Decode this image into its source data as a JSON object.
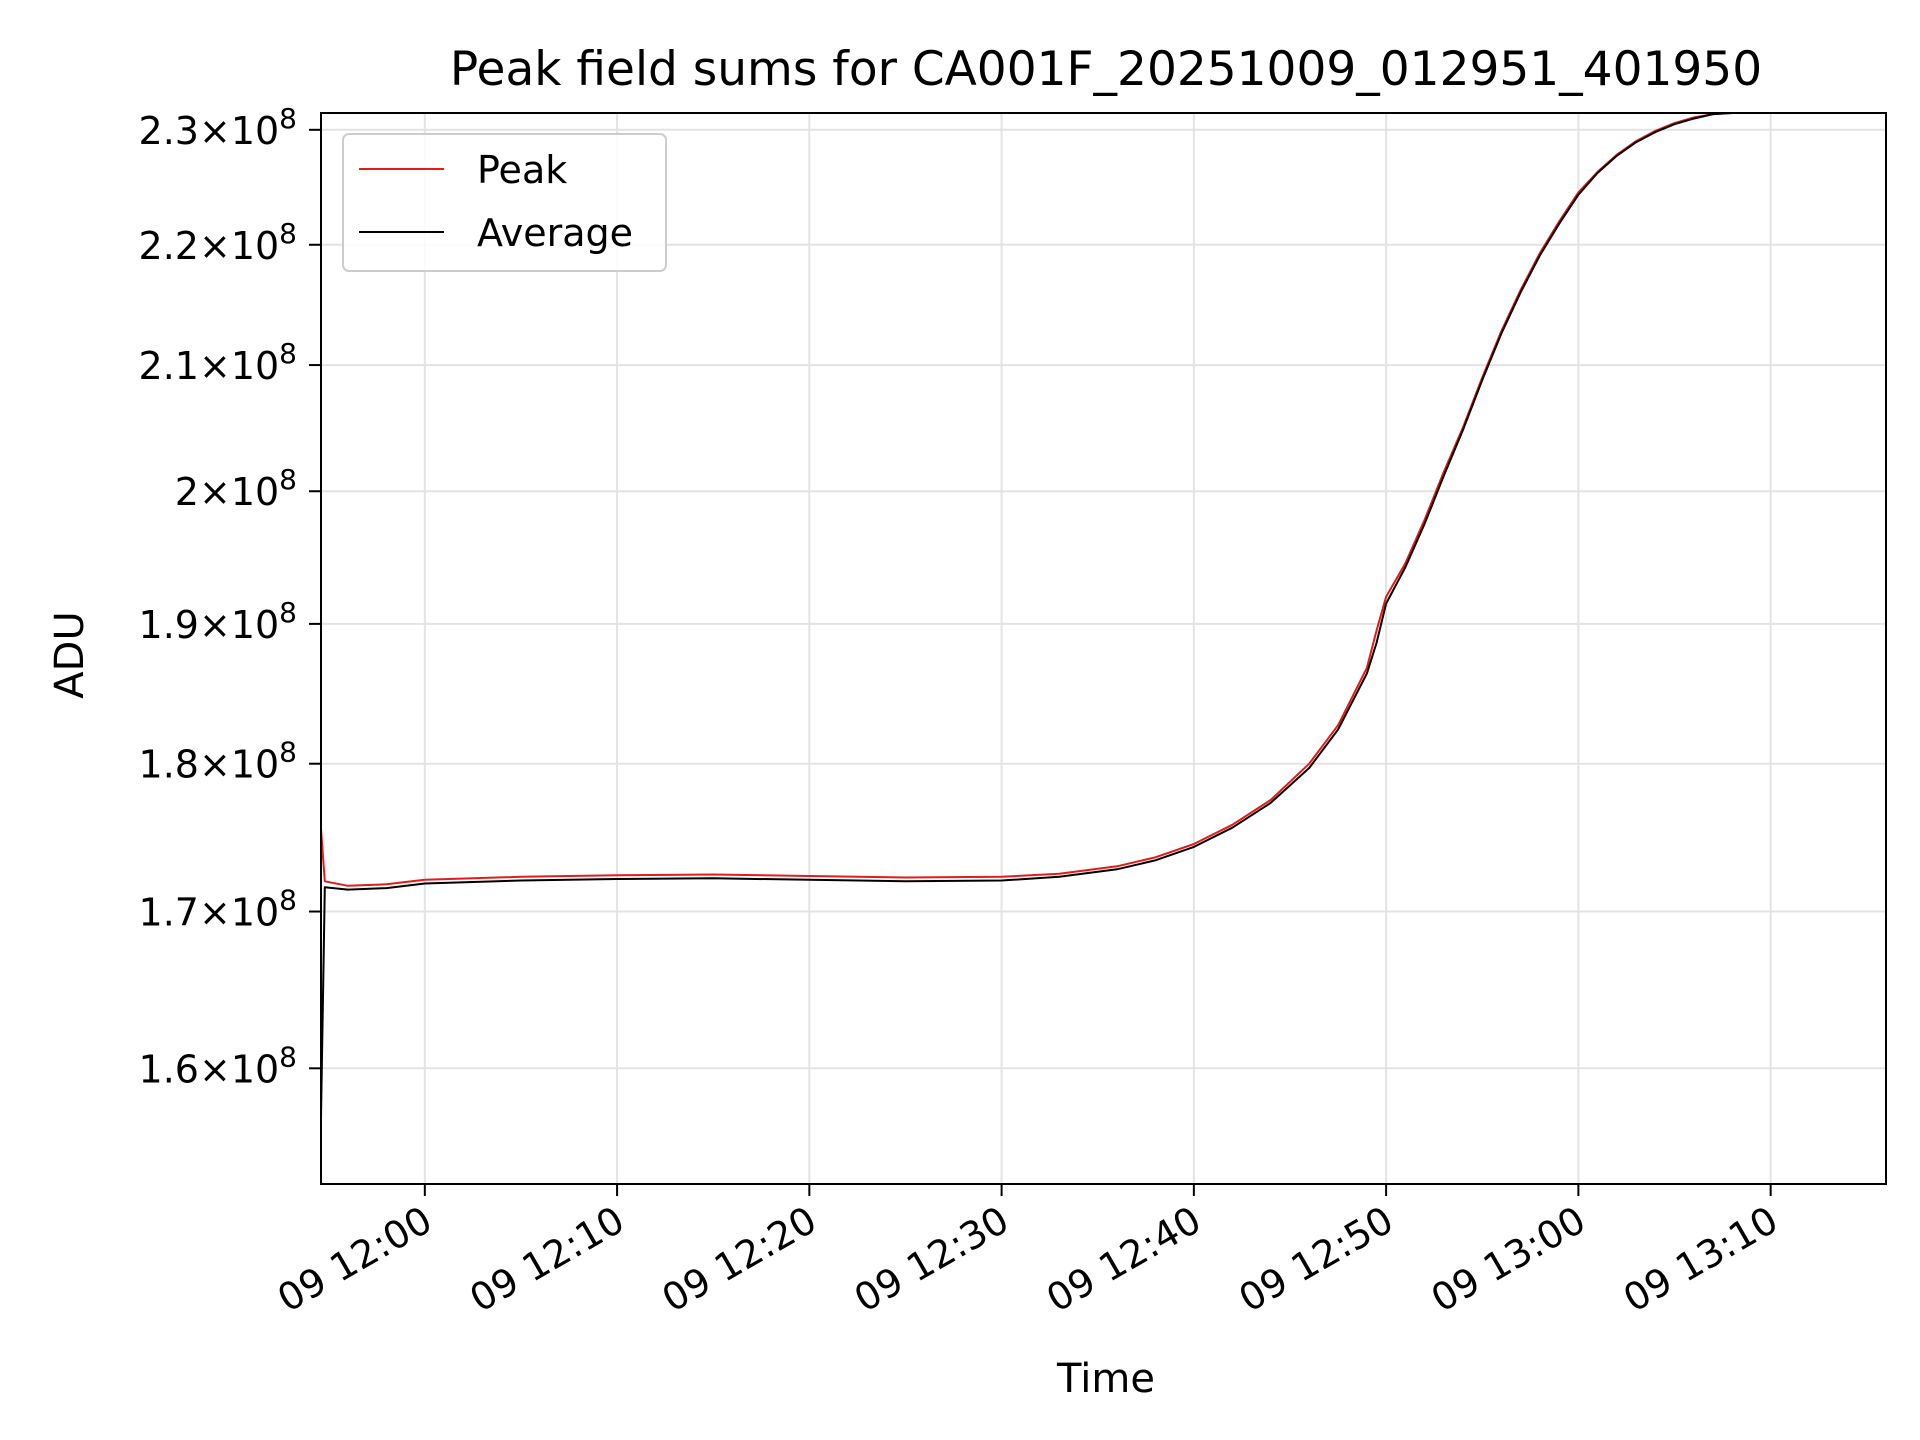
{
  "chart_data": {
    "type": "line",
    "title": "Peak field sums for CA001F_20251009_012951_401950",
    "xlabel": "Time",
    "ylabel": "ADU",
    "x_format": "DD HH:MM",
    "xlim": [
      "2025-10-09 11:54:36",
      "2025-10-09 13:16:00"
    ],
    "ylim": [
      153000000,
      231500000
    ],
    "yscale": "log",
    "grid": true,
    "legend_position": "top-left",
    "x_ticks": [
      {
        "value": "2025-10-09 12:00",
        "label": "09 12:00"
      },
      {
        "value": "2025-10-09 12:10",
        "label": "09 12:10"
      },
      {
        "value": "2025-10-09 12:20",
        "label": "09 12:20"
      },
      {
        "value": "2025-10-09 12:30",
        "label": "09 12:30"
      },
      {
        "value": "2025-10-09 12:40",
        "label": "09 12:40"
      },
      {
        "value": "2025-10-09 12:50",
        "label": "09 12:50"
      },
      {
        "value": "2025-10-09 13:00",
        "label": "09 13:00"
      },
      {
        "value": "2025-10-09 13:10",
        "label": "09 13:10"
      }
    ],
    "y_ticks": [
      {
        "value": 160000000,
        "mantissa": "1.6",
        "base": "10",
        "exp": "8"
      },
      {
        "value": 170000000,
        "mantissa": "1.7",
        "base": "10",
        "exp": "8"
      },
      {
        "value": 180000000,
        "mantissa": "1.8",
        "base": "10",
        "exp": "8"
      },
      {
        "value": 190000000,
        "mantissa": "1.9",
        "base": "10",
        "exp": "8"
      },
      {
        "value": 200000000,
        "mantissa": "2",
        "base": "10",
        "exp": "8"
      },
      {
        "value": 210000000,
        "mantissa": "2.1",
        "base": "10",
        "exp": "8"
      },
      {
        "value": 220000000,
        "mantissa": "2.2",
        "base": "10",
        "exp": "8"
      },
      {
        "value": 230000000,
        "mantissa": "2.3",
        "base": "10",
        "exp": "8"
      }
    ],
    "series": [
      {
        "name": "Peak",
        "color": "#e41a1c",
        "points": [
          [
            "2025-10-09 11:54:36",
            175500000
          ],
          [
            "2025-10-09 11:54:48",
            172000000
          ],
          [
            "2025-10-09 11:56:00",
            171700000
          ],
          [
            "2025-10-09 11:58:00",
            171800000
          ],
          [
            "2025-10-09 12:00:00",
            172100000
          ],
          [
            "2025-10-09 12:05:00",
            172300000
          ],
          [
            "2025-10-09 12:10:00",
            172400000
          ],
          [
            "2025-10-09 12:15:00",
            172450000
          ],
          [
            "2025-10-09 12:20:00",
            172350000
          ],
          [
            "2025-10-09 12:25:00",
            172250000
          ],
          [
            "2025-10-09 12:30:00",
            172300000
          ],
          [
            "2025-10-09 12:33:00",
            172500000
          ],
          [
            "2025-10-09 12:36:00",
            173000000
          ],
          [
            "2025-10-09 12:38:00",
            173600000
          ],
          [
            "2025-10-09 12:40:00",
            174500000
          ],
          [
            "2025-10-09 12:42:00",
            175800000
          ],
          [
            "2025-10-09 12:44:00",
            177500000
          ],
          [
            "2025-10-09 12:46:00",
            180000000
          ],
          [
            "2025-10-09 12:47:30",
            182700000
          ],
          [
            "2025-10-09 12:49:00",
            186800000
          ],
          [
            "2025-10-09 12:49:30",
            189500000
          ],
          [
            "2025-10-09 12:50:00",
            192000000
          ],
          [
            "2025-10-09 12:51:00",
            194500000
          ],
          [
            "2025-10-09 12:52:00",
            197800000
          ],
          [
            "2025-10-09 12:53:00",
            201500000
          ],
          [
            "2025-10-09 12:54:00",
            205000000
          ],
          [
            "2025-10-09 12:55:00",
            209000000
          ],
          [
            "2025-10-09 12:56:00",
            212800000
          ],
          [
            "2025-10-09 12:57:00",
            216200000
          ],
          [
            "2025-10-09 12:58:00",
            219300000
          ],
          [
            "2025-10-09 12:59:00",
            222000000
          ],
          [
            "2025-10-09 13:00:00",
            224500000
          ],
          [
            "2025-10-09 13:01:00",
            226300000
          ],
          [
            "2025-10-09 13:02:00",
            227800000
          ],
          [
            "2025-10-09 13:03:00",
            229000000
          ],
          [
            "2025-10-09 13:04:00",
            229900000
          ],
          [
            "2025-10-09 13:05:00",
            230600000
          ],
          [
            "2025-10-09 13:06:00",
            231100000
          ],
          [
            "2025-10-09 13:07:00",
            231400000
          ],
          [
            "2025-10-09 13:08:00",
            231500000
          ]
        ]
      },
      {
        "name": "Average",
        "color": "#000000",
        "points": [
          [
            "2025-10-09 11:54:36",
            157000000
          ],
          [
            "2025-10-09 11:54:48",
            171600000
          ],
          [
            "2025-10-09 11:56:00",
            171450000
          ],
          [
            "2025-10-09 11:58:00",
            171550000
          ],
          [
            "2025-10-09 12:00:00",
            171850000
          ],
          [
            "2025-10-09 12:05:00",
            172050000
          ],
          [
            "2025-10-09 12:10:00",
            172150000
          ],
          [
            "2025-10-09 12:15:00",
            172200000
          ],
          [
            "2025-10-09 12:20:00",
            172100000
          ],
          [
            "2025-10-09 12:25:00",
            172000000
          ],
          [
            "2025-10-09 12:30:00",
            172050000
          ],
          [
            "2025-10-09 12:33:00",
            172300000
          ],
          [
            "2025-10-09 12:36:00",
            172800000
          ],
          [
            "2025-10-09 12:38:00",
            173400000
          ],
          [
            "2025-10-09 12:40:00",
            174300000
          ],
          [
            "2025-10-09 12:42:00",
            175600000
          ],
          [
            "2025-10-09 12:44:00",
            177300000
          ],
          [
            "2025-10-09 12:46:00",
            179700000
          ],
          [
            "2025-10-09 12:47:30",
            182400000
          ],
          [
            "2025-10-09 12:49:00",
            186400000
          ],
          [
            "2025-10-09 12:49:30",
            188600000
          ],
          [
            "2025-10-09 12:50:00",
            191500000
          ],
          [
            "2025-10-09 12:51:00",
            194200000
          ],
          [
            "2025-10-09 12:52:00",
            197500000
          ],
          [
            "2025-10-09 12:53:00",
            201200000
          ],
          [
            "2025-10-09 12:54:00",
            204800000
          ],
          [
            "2025-10-09 12:55:00",
            208800000
          ],
          [
            "2025-10-09 12:56:00",
            212600000
          ],
          [
            "2025-10-09 12:57:00",
            216000000
          ],
          [
            "2025-10-09 12:58:00",
            219100000
          ],
          [
            "2025-10-09 12:59:00",
            221800000
          ],
          [
            "2025-10-09 13:00:00",
            224300000
          ],
          [
            "2025-10-09 13:01:00",
            226200000
          ],
          [
            "2025-10-09 13:02:00",
            227700000
          ],
          [
            "2025-10-09 13:03:00",
            228900000
          ],
          [
            "2025-10-09 13:04:00",
            229800000
          ],
          [
            "2025-10-09 13:05:00",
            230500000
          ],
          [
            "2025-10-09 13:06:00",
            231000000
          ],
          [
            "2025-10-09 13:07:00",
            231400000
          ],
          [
            "2025-10-09 13:08:00",
            231500000
          ]
        ]
      }
    ]
  }
}
